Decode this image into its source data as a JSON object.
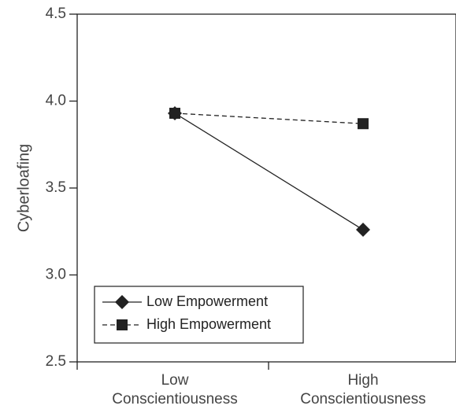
{
  "chart_data": {
    "type": "line",
    "title": "",
    "xlabel": "",
    "ylabel": "Cyberloafing",
    "categories": [
      [
        "Low",
        "Conscientiousness"
      ],
      [
        "High",
        "Conscientiousness"
      ]
    ],
    "ylim": [
      2.5,
      4.5
    ],
    "yticks": [
      "2.5",
      "3.0",
      "3.5",
      "4.0",
      "4.5"
    ],
    "grid": false,
    "legend_position": "bottom-left",
    "series": [
      {
        "name": "Low Empowerment",
        "values": [
          3.93,
          3.26
        ],
        "marker": "diamond",
        "line_style": "solid",
        "color": "#222222"
      },
      {
        "name": "High Empowerment",
        "values": [
          3.93,
          3.87
        ],
        "marker": "square",
        "line_style": "dashed",
        "color": "#222222"
      }
    ]
  }
}
